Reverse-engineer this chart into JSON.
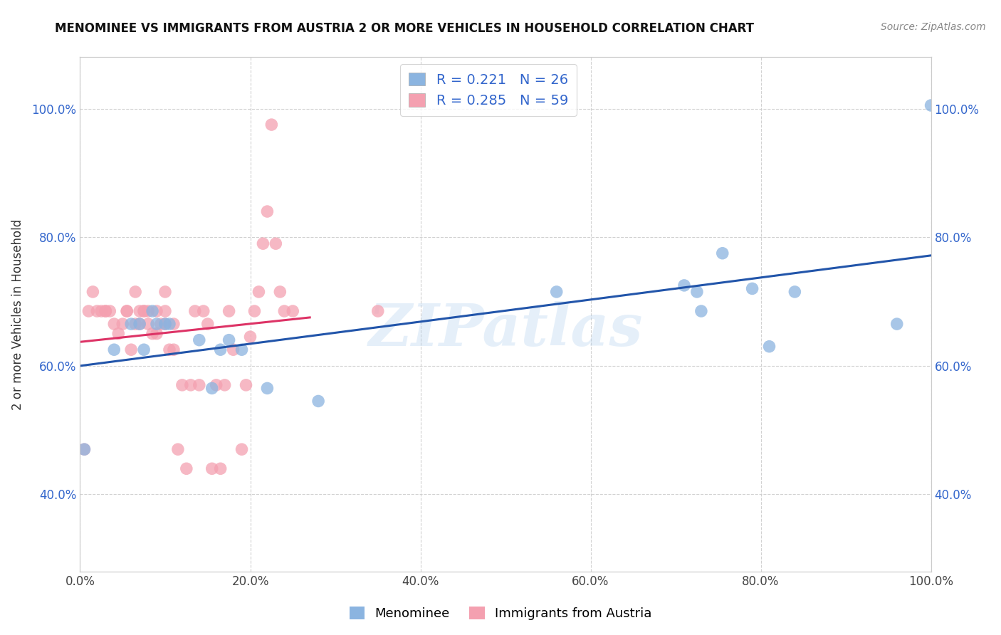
{
  "title": "MENOMINEE VS IMMIGRANTS FROM AUSTRIA 2 OR MORE VEHICLES IN HOUSEHOLD CORRELATION CHART",
  "source": "Source: ZipAtlas.com",
  "ylabel": "2 or more Vehicles in Household",
  "legend_labels": [
    "Menominee",
    "Immigrants from Austria"
  ],
  "r_values": [
    0.221,
    0.285
  ],
  "n_values": [
    26,
    59
  ],
  "blue_color": "#8BB4E0",
  "pink_color": "#F4A0B0",
  "trend_blue": "#2255AA",
  "trend_pink": "#DD3366",
  "text_color": "#3366CC",
  "xlim": [
    0.0,
    1.0
  ],
  "ylim": [
    0.28,
    1.08
  ],
  "x_ticks": [
    0.0,
    0.2,
    0.4,
    0.6,
    0.8,
    1.0
  ],
  "y_ticks": [
    0.4,
    0.6,
    0.8,
    1.0
  ],
  "x_tick_labels": [
    "0.0%",
    "20.0%",
    "40.0%",
    "60.0%",
    "80.0%",
    "100.0%"
  ],
  "y_tick_labels": [
    "40.0%",
    "60.0%",
    "80.0%",
    "100.0%"
  ],
  "blue_x": [
    0.005,
    0.04,
    0.06,
    0.07,
    0.075,
    0.085,
    0.09,
    0.1,
    0.105,
    0.14,
    0.155,
    0.165,
    0.175,
    0.19,
    0.22,
    0.28,
    0.56,
    0.71,
    0.725,
    0.73,
    0.755,
    0.79,
    0.81,
    0.84,
    0.96,
    1.0
  ],
  "blue_y": [
    0.47,
    0.625,
    0.665,
    0.665,
    0.625,
    0.685,
    0.665,
    0.665,
    0.665,
    0.64,
    0.565,
    0.625,
    0.64,
    0.625,
    0.565,
    0.545,
    0.715,
    0.725,
    0.715,
    0.685,
    0.775,
    0.72,
    0.63,
    0.715,
    0.665,
    1.005
  ],
  "pink_x": [
    0.005,
    0.01,
    0.015,
    0.02,
    0.025,
    0.03,
    0.03,
    0.035,
    0.04,
    0.045,
    0.05,
    0.055,
    0.055,
    0.06,
    0.065,
    0.065,
    0.07,
    0.07,
    0.075,
    0.075,
    0.08,
    0.08,
    0.085,
    0.09,
    0.09,
    0.095,
    0.1,
    0.1,
    0.1,
    0.105,
    0.11,
    0.11,
    0.115,
    0.12,
    0.125,
    0.13,
    0.135,
    0.14,
    0.145,
    0.15,
    0.155,
    0.16,
    0.165,
    0.17,
    0.175,
    0.18,
    0.19,
    0.195,
    0.2,
    0.205,
    0.21,
    0.215,
    0.22,
    0.225,
    0.23,
    0.235,
    0.24,
    0.25,
    0.35
  ],
  "pink_y": [
    0.47,
    0.685,
    0.715,
    0.685,
    0.685,
    0.685,
    0.685,
    0.685,
    0.665,
    0.65,
    0.665,
    0.685,
    0.685,
    0.625,
    0.665,
    0.715,
    0.665,
    0.685,
    0.685,
    0.685,
    0.665,
    0.685,
    0.65,
    0.65,
    0.685,
    0.665,
    0.665,
    0.685,
    0.715,
    0.625,
    0.625,
    0.665,
    0.47,
    0.57,
    0.44,
    0.57,
    0.685,
    0.57,
    0.685,
    0.665,
    0.44,
    0.57,
    0.44,
    0.57,
    0.685,
    0.625,
    0.47,
    0.57,
    0.645,
    0.685,
    0.715,
    0.79,
    0.84,
    0.975,
    0.79,
    0.715,
    0.685,
    0.685,
    0.685
  ],
  "watermark_text": "ZIPatlas",
  "figsize": [
    14.06,
    8.92
  ],
  "dpi": 100
}
